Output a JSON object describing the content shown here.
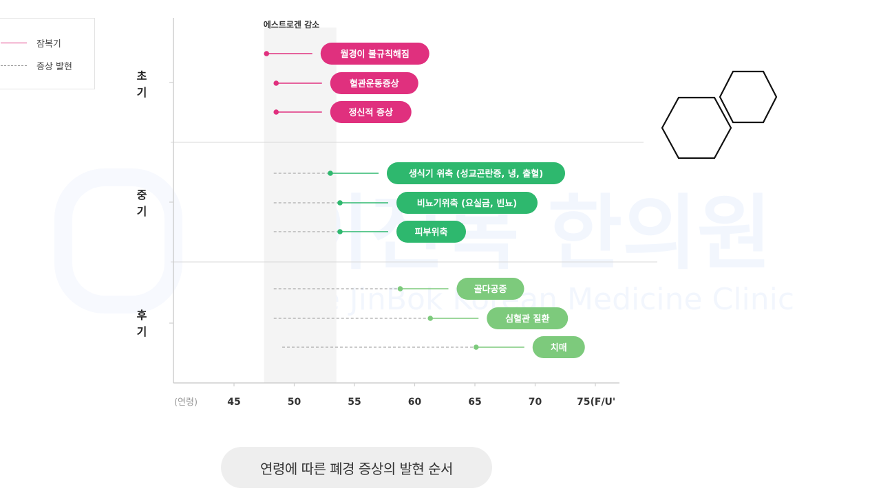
{
  "legend": {
    "items": [
      {
        "label": "잠복기",
        "style": "solid"
      },
      {
        "label": "증상 발현",
        "style": "dashed"
      }
    ]
  },
  "watermark": {
    "title": "이진복 한의원",
    "subtitle": "Lee JinBok Korean Medicine Clinic"
  },
  "caption": "연령에 따른 폐경 증상의 발현 순서",
  "chart_data": {
    "type": "timeline",
    "x_axis": {
      "unit_label": "(연령)",
      "ticks": [
        {
          "value": 45,
          "label": "45"
        },
        {
          "value": 50,
          "label": "50"
        },
        {
          "value": 55,
          "label": "55"
        },
        {
          "value": 60,
          "label": "60"
        },
        {
          "value": 65,
          "label": "65"
        },
        {
          "value": 70,
          "label": "70"
        },
        {
          "value": 75,
          "label": "75(F/U'"
        }
      ],
      "range": [
        40.5,
        76.5
      ]
    },
    "highlight_band": {
      "label": "에스트로겐 감소",
      "from": 47.5,
      "to": 53.5
    },
    "stages": [
      {
        "label": "초\n기",
        "color": "#e0307e",
        "items": [
          {
            "label": "월경이 불규칙해짐",
            "dash_start": null,
            "dot": 47.7,
            "line_end": 51.5
          },
          {
            "label": "혈관운동증상",
            "dash_start": null,
            "dot": 48.5,
            "line_end": 52.3
          },
          {
            "label": "정신적 증상",
            "dash_start": null,
            "dot": 48.5,
            "line_end": 52.3
          }
        ]
      },
      {
        "label": "중\n기",
        "color": "#2eb86e",
        "items": [
          {
            "label": "생식기 위축 (성교곤란증, 냉, 출혈)",
            "dash_start": 48.3,
            "dot": 53.0,
            "line_end": 57.0
          },
          {
            "label": "비뇨기위축 (요실금, 빈뇨)",
            "dash_start": 48.3,
            "dot": 53.8,
            "line_end": 57.8
          },
          {
            "label": "피부위축",
            "dash_start": 48.3,
            "dot": 53.8,
            "line_end": 57.8
          }
        ]
      },
      {
        "label": "후\n기",
        "color": "#7dca7c",
        "items": [
          {
            "label": "골다공증",
            "dash_start": 48.3,
            "dot": 58.8,
            "line_end": 62.8
          },
          {
            "label": "심혈관 질환",
            "dash_start": 48.3,
            "dot": 61.3,
            "line_end": 65.3
          },
          {
            "label": "치매",
            "dash_start": 49.0,
            "dot": 65.1,
            "line_end": 69.1
          }
        ]
      }
    ]
  }
}
